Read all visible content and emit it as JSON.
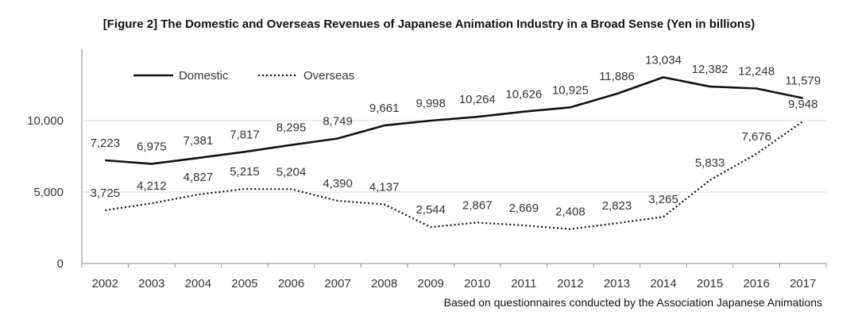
{
  "chart_data": {
    "type": "line",
    "title": "[Figure 2] The Domestic and Overseas Revenues of Japanese Animation Industry in a Broad Sense (Yen in billions)",
    "source": "Based on questionnaires conducted by the Association Japanese Animations",
    "xlabel": "",
    "ylabel": "",
    "ylim": [
      0,
      15000
    ],
    "yticks": [
      0,
      5000,
      10000
    ],
    "ytick_labels": [
      "0",
      "5,000",
      "10,000"
    ],
    "grid": true,
    "legend_position": "top-left",
    "categories": [
      "2002",
      "2003",
      "2004",
      "2005",
      "2006",
      "2007",
      "2008",
      "2009",
      "2010",
      "2011",
      "2012",
      "2013",
      "2014",
      "2015",
      "2016",
      "2017"
    ],
    "series": [
      {
        "name": "Domestic",
        "style": "solid",
        "values": [
          7223,
          6975,
          7381,
          7817,
          8295,
          8749,
          9661,
          9998,
          10264,
          10626,
          10925,
          11886,
          13034,
          12382,
          12248,
          11579
        ],
        "labels": [
          "7,223",
          "6,975",
          "7,381",
          "7,817",
          "8,295",
          "8,749",
          "9,661",
          "9,998",
          "10,264",
          "10,626",
          "10,925",
          "11,886",
          "13,034",
          "12,382",
          "12,248",
          "11,579"
        ]
      },
      {
        "name": "Overseas",
        "style": "dotted",
        "values": [
          3725,
          4212,
          4827,
          5215,
          5204,
          4390,
          4137,
          2544,
          2867,
          2669,
          2408,
          2823,
          3265,
          5833,
          7676,
          9948
        ],
        "labels": [
          "3,725",
          "4,212",
          "4,827",
          "5,215",
          "5,204",
          "4,390",
          "4,137",
          "2,544",
          "2,867",
          "2,669",
          "2,408",
          "2,823",
          "3,265",
          "5,833",
          "7,676",
          "9,948"
        ]
      }
    ],
    "colors": {
      "line": "#111111",
      "grid": "#d9d9d9",
      "axis": "#888888"
    }
  }
}
